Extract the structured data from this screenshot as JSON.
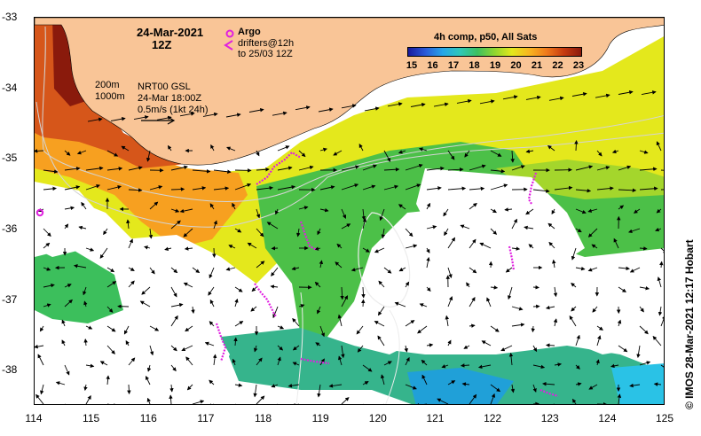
{
  "header": {
    "date": "24-Mar-2021",
    "time": "12Z",
    "argo_label": "Argo",
    "drifters_line1": "drifters@12h",
    "drifters_line2": "to 25/03 12Z",
    "colorbar_title": "4h comp, p50, All Sats"
  },
  "info": {
    "depth1": "200m",
    "depth2": "1000m",
    "product": "NRT00 GSL",
    "valid": "24-Mar 18:00Z",
    "scale": "0.5m/s (1kt 24h)"
  },
  "credit": "© IMOS 28-Mar-2021 12:17 Hobart",
  "colorbar": {
    "labels": [
      "15",
      "16",
      "17",
      "18",
      "19",
      "20",
      "21",
      "22",
      "23"
    ],
    "colors": [
      "#1a1a9c",
      "#2a5ad8",
      "#27a6e8",
      "#30c8b8",
      "#3cc060",
      "#8fd630",
      "#e4e81c",
      "#f7b520",
      "#ef7a1c",
      "#c63b10",
      "#8a1a0c"
    ]
  },
  "axes": {
    "x_ticks": [
      "114",
      "115",
      "116",
      "117",
      "118",
      "119",
      "120",
      "121",
      "122",
      "123",
      "124",
      "125"
    ],
    "y_ticks": [
      "-33",
      "-34",
      "-35",
      "-36",
      "-37",
      "-38"
    ],
    "lon_range": [
      114,
      125
    ],
    "lat_range": [
      -38.5,
      -33
    ]
  },
  "colors": {
    "land": "#f9c597",
    "argo_marker": "#e020e0",
    "drifter": "#e020e0",
    "vector": "#000000",
    "isobath": "#c8c8c8"
  }
}
